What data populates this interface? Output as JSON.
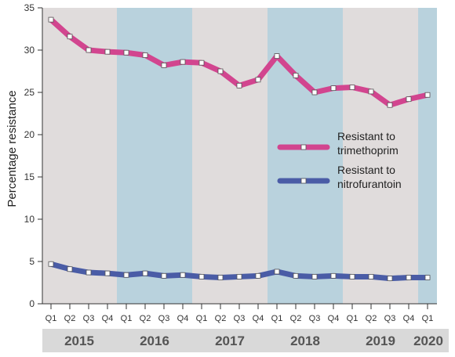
{
  "chart_data": {
    "type": "line",
    "ylabel": "Percentage resistance",
    "ylim": [
      0,
      35
    ],
    "yticks": [
      0,
      5,
      10,
      15,
      20,
      25,
      30,
      35
    ],
    "quarters": [
      "Q1",
      "Q2",
      "Q3",
      "Q4",
      "Q1",
      "Q2",
      "Q3",
      "Q4",
      "Q1",
      "Q2",
      "Q3",
      "Q4",
      "Q1",
      "Q2",
      "Q3",
      "Q4",
      "Q1",
      "Q2",
      "Q3",
      "Q4",
      "Q1"
    ],
    "years": [
      {
        "label": "2015",
        "start": 0,
        "count": 4
      },
      {
        "label": "2016",
        "start": 4,
        "count": 4
      },
      {
        "label": "2017",
        "start": 8,
        "count": 4
      },
      {
        "label": "2018",
        "start": 12,
        "count": 4
      },
      {
        "label": "2019",
        "start": 16,
        "count": 4
      },
      {
        "label": "2020",
        "start": 20,
        "count": 1
      }
    ],
    "series": [
      {
        "name": "Resistant to trimethoprim",
        "legend_lines": [
          "Resistant to",
          "trimethoprim"
        ],
        "color": "#d2458f",
        "values": [
          33.6,
          31.6,
          30.0,
          29.8,
          29.7,
          29.4,
          28.2,
          28.6,
          28.5,
          27.5,
          25.8,
          26.5,
          29.3,
          27.0,
          25.0,
          25.5,
          25.6,
          25.1,
          23.5,
          24.2,
          24.7
        ]
      },
      {
        "name": "Resistant to nitrofurantoin",
        "legend_lines": [
          "Resistant to",
          "nitrofurantoin"
        ],
        "color": "#4a5ca6",
        "values": [
          4.7,
          4.1,
          3.7,
          3.6,
          3.4,
          3.6,
          3.3,
          3.4,
          3.2,
          3.1,
          3.2,
          3.3,
          3.8,
          3.3,
          3.2,
          3.3,
          3.2,
          3.2,
          3.0,
          3.1,
          3.1
        ]
      }
    ],
    "band_colors": [
      "#e0dcdc",
      "#b9d2dd"
    ],
    "year_strip_color": "#d9d9d9"
  }
}
